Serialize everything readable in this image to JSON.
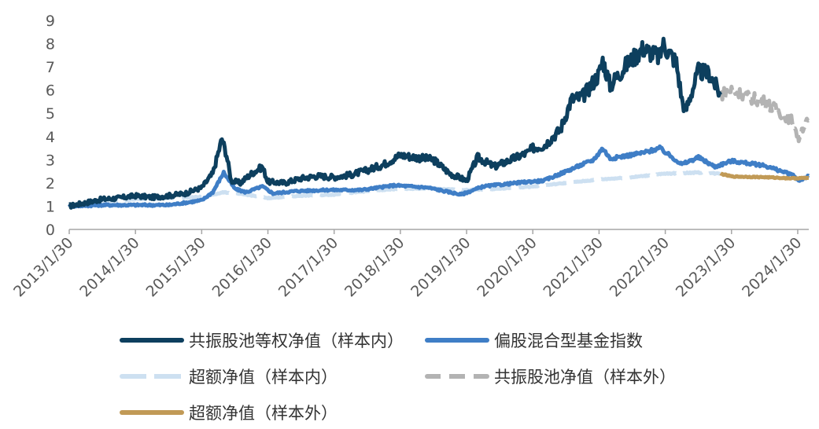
{
  "chart_data": {
    "type": "line",
    "title": "",
    "xlabel": "",
    "ylabel": "",
    "ylim": [
      0,
      9
    ],
    "yticks": [
      0,
      1,
      2,
      3,
      4,
      5,
      6,
      7,
      8,
      9
    ],
    "xticks": [
      "2013/1/30",
      "2014/1/30",
      "2015/1/30",
      "2016/1/30",
      "2017/1/30",
      "2018/1/30",
      "2019/1/30",
      "2020/1/30",
      "2021/1/30",
      "2022/1/30",
      "2023/1/30",
      "2024/1/30"
    ],
    "grid": false,
    "legend_position": "bottom",
    "series": [
      {
        "name": "共振股池等权净值（样本内）",
        "color": "#0d3f5e",
        "style": "solid",
        "points": [
          [
            "2013/1/30",
            1.0
          ],
          [
            "2013/4/30",
            1.15
          ],
          [
            "2013/7/30",
            1.3
          ],
          [
            "2013/10/30",
            1.35
          ],
          [
            "2014/1/30",
            1.45
          ],
          [
            "2014/4/30",
            1.38
          ],
          [
            "2014/7/30",
            1.45
          ],
          [
            "2014/10/30",
            1.55
          ],
          [
            "2015/1/30",
            1.8
          ],
          [
            "2015/3/30",
            2.4
          ],
          [
            "2015/4/30",
            3.3
          ],
          [
            "2015/5/20",
            3.9
          ],
          [
            "2015/6/15",
            3.2
          ],
          [
            "2015/7/10",
            2.1
          ],
          [
            "2015/8/30",
            2.0
          ],
          [
            "2015/10/30",
            2.4
          ],
          [
            "2015/12/30",
            2.7
          ],
          [
            "2016/1/30",
            2.05
          ],
          [
            "2016/4/30",
            2.0
          ],
          [
            "2016/7/30",
            2.2
          ],
          [
            "2016/10/30",
            2.3
          ],
          [
            "2017/1/30",
            2.25
          ],
          [
            "2017/4/30",
            2.35
          ],
          [
            "2017/7/30",
            2.55
          ],
          [
            "2017/10/30",
            2.8
          ],
          [
            "2018/1/30",
            3.2
          ],
          [
            "2018/4/30",
            3.1
          ],
          [
            "2018/7/30",
            3.0
          ],
          [
            "2018/10/30",
            2.4
          ],
          [
            "2019/1/30",
            2.1
          ],
          [
            "2019/3/30",
            3.1
          ],
          [
            "2019/6/30",
            2.7
          ],
          [
            "2019/9/30",
            3.0
          ],
          [
            "2019/12/30",
            3.3
          ],
          [
            "2020/1/30",
            3.5
          ],
          [
            "2020/3/30",
            3.6
          ],
          [
            "2020/6/30",
            4.3
          ],
          [
            "2020/8/30",
            5.6
          ],
          [
            "2020/10/30",
            5.7
          ],
          [
            "2021/1/30",
            6.7
          ],
          [
            "2021/2/20",
            7.3
          ],
          [
            "2021/3/30",
            6.2
          ],
          [
            "2021/6/30",
            7.1
          ],
          [
            "2021/9/30",
            7.8
          ],
          [
            "2021/12/30",
            7.4
          ],
          [
            "2022/1/15",
            8.0
          ],
          [
            "2022/3/30",
            7.2
          ],
          [
            "2022/4/30",
            5.6
          ],
          [
            "2022/5/20",
            5.1
          ],
          [
            "2022/7/30",
            6.8
          ],
          [
            "2022/9/30",
            6.7
          ],
          [
            "2022/11/30",
            5.8
          ]
        ]
      },
      {
        "name": "偏股混合型基金指数",
        "color": "#3f7ec6",
        "style": "solid",
        "points": [
          [
            "2013/1/30",
            1.0
          ],
          [
            "2013/7/30",
            1.05
          ],
          [
            "2014/1/30",
            1.05
          ],
          [
            "2014/7/30",
            1.05
          ],
          [
            "2015/1/30",
            1.25
          ],
          [
            "2015/3/30",
            1.6
          ],
          [
            "2015/5/30",
            2.45
          ],
          [
            "2015/7/30",
            1.75
          ],
          [
            "2015/9/30",
            1.6
          ],
          [
            "2015/12/30",
            1.85
          ],
          [
            "2016/2/28",
            1.55
          ],
          [
            "2016/6/30",
            1.65
          ],
          [
            "2016/12/30",
            1.7
          ],
          [
            "2017/6/30",
            1.7
          ],
          [
            "2017/12/30",
            1.9
          ],
          [
            "2018/6/30",
            1.8
          ],
          [
            "2018/12/30",
            1.5
          ],
          [
            "2019/4/30",
            1.85
          ],
          [
            "2019/12/30",
            2.05
          ],
          [
            "2020/3/30",
            2.1
          ],
          [
            "2020/7/30",
            2.5
          ],
          [
            "2020/12/30",
            3.0
          ],
          [
            "2021/2/20",
            3.5
          ],
          [
            "2021/3/30",
            3.05
          ],
          [
            "2021/9/30",
            3.3
          ],
          [
            "2021/12/30",
            3.5
          ],
          [
            "2022/4/30",
            2.8
          ],
          [
            "2022/7/30",
            3.1
          ],
          [
            "2022/10/30",
            2.7
          ],
          [
            "2023/1/30",
            2.95
          ],
          [
            "2023/7/30",
            2.75
          ],
          [
            "2023/12/30",
            2.35
          ],
          [
            "2024/2/5",
            2.1
          ],
          [
            "2024/3/30",
            2.3
          ]
        ]
      },
      {
        "name": "超额净值（样本内）",
        "color": "#cde0f1",
        "style": "dashed",
        "points": [
          [
            "2013/1/30",
            1.0
          ],
          [
            "2013/7/30",
            1.15
          ],
          [
            "2014/1/30",
            1.3
          ],
          [
            "2014/7/30",
            1.35
          ],
          [
            "2015/1/30",
            1.4
          ],
          [
            "2015/5/30",
            1.6
          ],
          [
            "2015/9/30",
            1.5
          ],
          [
            "2016/1/30",
            1.35
          ],
          [
            "2016/7/30",
            1.45
          ],
          [
            "2017/1/30",
            1.5
          ],
          [
            "2017/7/30",
            1.65
          ],
          [
            "2018/1/30",
            1.75
          ],
          [
            "2018/7/30",
            1.75
          ],
          [
            "2019/1/30",
            1.7
          ],
          [
            "2019/7/30",
            1.75
          ],
          [
            "2020/1/30",
            1.85
          ],
          [
            "2020/7/30",
            2.0
          ],
          [
            "2021/1/30",
            2.15
          ],
          [
            "2021/7/30",
            2.25
          ],
          [
            "2022/1/30",
            2.4
          ],
          [
            "2022/7/30",
            2.45
          ],
          [
            "2022/11/30",
            2.4
          ]
        ]
      },
      {
        "name": "共振股池净值（样本外）",
        "color": "#b3b3b3",
        "style": "dashed",
        "points": [
          [
            "2022/11/30",
            5.8
          ],
          [
            "2023/1/30",
            6.0
          ],
          [
            "2023/4/30",
            5.7
          ],
          [
            "2023/7/30",
            5.5
          ],
          [
            "2023/10/30",
            5.0
          ],
          [
            "2023/12/30",
            4.7
          ],
          [
            "2024/2/5",
            3.9
          ],
          [
            "2024/2/28",
            4.4
          ],
          [
            "2024/3/30",
            4.7
          ]
        ]
      },
      {
        "name": "超额净值（样本外）",
        "color": "#c19a56",
        "style": "solid",
        "points": [
          [
            "2022/11/30",
            2.4
          ],
          [
            "2023/1/30",
            2.28
          ],
          [
            "2023/7/30",
            2.25
          ],
          [
            "2023/12/30",
            2.2
          ],
          [
            "2024/3/30",
            2.22
          ]
        ]
      }
    ]
  }
}
